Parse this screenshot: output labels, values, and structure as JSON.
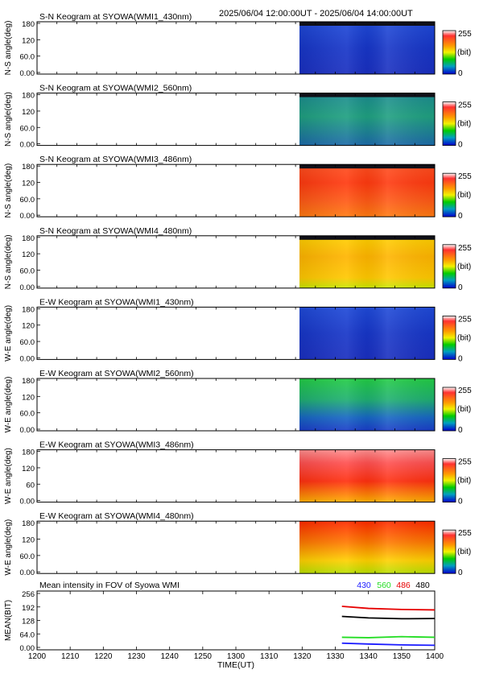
{
  "header": {
    "time_range": "2025/06/04 12:00:00UT - 2025/06/04 14:00:00UT"
  },
  "colorbar": {
    "max_label": "255",
    "unit_label": "(bit)",
    "min_label": "0"
  },
  "chart_data": [
    {
      "type": "heatmap",
      "title": "S-N Keogram at SYOWA(WMI1_430nm)",
      "ylabel": "N-S angle(deg)",
      "ylim": [
        0,
        180
      ],
      "y_ticks": [
        "180",
        "120",
        "60.0",
        "0.00"
      ],
      "xlim": [
        1200,
        1400
      ],
      "data_start": 1332,
      "palette": "blue",
      "top_band": "dark"
    },
    {
      "type": "heatmap",
      "title": "S-N Keogram at SYOWA(WMI2_560nm)",
      "ylabel": "N-S angle(deg)",
      "ylim": [
        0,
        180
      ],
      "y_ticks": [
        "180",
        "120",
        "60.0",
        "0.00"
      ],
      "xlim": [
        1200,
        1400
      ],
      "data_start": 1332,
      "palette": "teal",
      "top_band": "dark"
    },
    {
      "type": "heatmap",
      "title": "S-N Keogram at SYOWA(WMI3_486nm)",
      "ylabel": "N-S angle(deg)",
      "ylim": [
        0,
        180
      ],
      "y_ticks": [
        "180",
        "120",
        "60.0",
        "0.00"
      ],
      "xlim": [
        1200,
        1400
      ],
      "data_start": 1332,
      "palette": "red",
      "top_band": "dark"
    },
    {
      "type": "heatmap",
      "title": "S-N Keogram at SYOWA(WMI4_480nm)",
      "ylabel": "N-S angle(deg)",
      "ylim": [
        0,
        180
      ],
      "y_ticks": [
        "180",
        "120",
        "60.0",
        "0.00"
      ],
      "xlim": [
        1200,
        1400
      ],
      "data_start": 1332,
      "palette": "yellow",
      "top_band": "dark"
    },
    {
      "type": "heatmap",
      "title": "E-W Keogram at SYOWA(WMI1_430nm)",
      "ylabel": "W-E angle(deg)",
      "ylim": [
        0,
        180
      ],
      "y_ticks": [
        "180",
        "120",
        "60.0",
        "0.00"
      ],
      "xlim": [
        1200,
        1400
      ],
      "data_start": 1332,
      "palette": "blue",
      "top_band": "none"
    },
    {
      "type": "heatmap",
      "title": "E-W Keogram at SYOWA(WMI2_560nm)",
      "ylabel": "W-E angle(deg)",
      "ylim": [
        0,
        180
      ],
      "y_ticks": [
        "180",
        "120",
        "60.0",
        "0.00"
      ],
      "xlim": [
        1200,
        1400
      ],
      "data_start": 1332,
      "palette": "green",
      "top_band": "none"
    },
    {
      "type": "heatmap",
      "title": "E-W Keogram at SYOWA(WMI3_486nm)",
      "ylabel": "W-E angle(deg)",
      "ylim": [
        0,
        180
      ],
      "y_ticks": [
        "180",
        "120",
        "60",
        "0.00"
      ],
      "xlim": [
        1200,
        1400
      ],
      "data_start": 1332,
      "palette": "red2",
      "top_band": "none"
    },
    {
      "type": "heatmap",
      "title": "E-W Keogram at SYOWA(WMI4_480nm)",
      "ylabel": "W-E angle(deg)",
      "ylim": [
        0,
        180
      ],
      "y_ticks": [
        "180",
        "120",
        "60.0",
        "0.00"
      ],
      "xlim": [
        1200,
        1400
      ],
      "data_start": 1332,
      "palette": "yellow2",
      "top_band": "none"
    },
    {
      "type": "line",
      "title": "Mean intensity in FOV of Syowa WMI",
      "xlabel": "TIME(UT)",
      "ylabel": "MEAN(BIT)",
      "ylim": [
        0,
        256
      ],
      "y_ticks": [
        "256",
        "192",
        "128",
        "64.0",
        "0.00"
      ],
      "xlim": [
        1200,
        1400
      ],
      "x_ticks": [
        "1200",
        "1210",
        "1220",
        "1230",
        "1240",
        "1250",
        "1300",
        "1310",
        "1320",
        "1330",
        "1340",
        "1350",
        "1400"
      ],
      "x": [
        1332,
        1340,
        1350,
        1400
      ],
      "series": [
        {
          "name": "430",
          "color": "#1a1aff",
          "values": [
            20,
            16,
            12,
            10
          ]
        },
        {
          "name": "560",
          "color": "#22dd22",
          "values": [
            48,
            46,
            51,
            48
          ]
        },
        {
          "name": "486",
          "color": "#e60000",
          "values": [
            195,
            185,
            180,
            178
          ]
        },
        {
          "name": "480",
          "color": "#000000",
          "values": [
            147,
            140,
            136,
            137
          ]
        }
      ]
    }
  ]
}
